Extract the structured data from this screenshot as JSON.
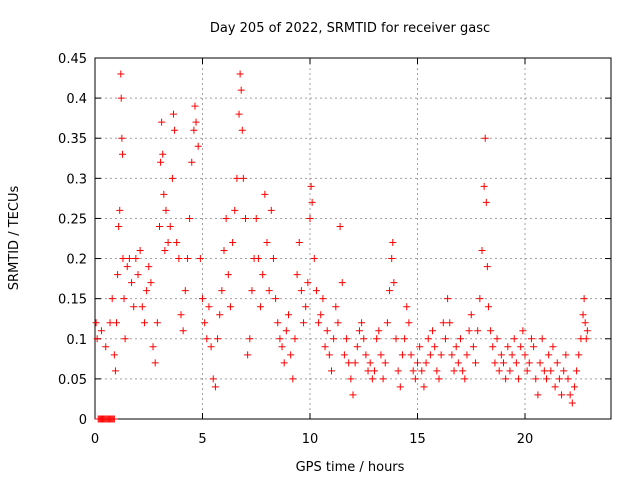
{
  "chart_data": {
    "type": "scatter",
    "title": "Day 205 of 2022, SRMTID for receiver gasc",
    "xlabel": "GPS time / hours",
    "ylabel": "SRMTID / TECUs",
    "xlim": [
      0,
      24
    ],
    "ylim": [
      0,
      0.45
    ],
    "xticks": [
      0,
      5,
      10,
      15,
      20
    ],
    "xtick_labels": [
      "0",
      "5",
      "10",
      "15",
      "20"
    ],
    "yticks": [
      0,
      0.05,
      0.1,
      0.15,
      0.2,
      0.25,
      0.3,
      0.35,
      0.4,
      0.45
    ],
    "ytick_labels": [
      "0",
      "0.05",
      "0.1",
      "0.15",
      "0.2",
      "0.25",
      "0.3",
      "0.35",
      "0.4",
      "0.45"
    ],
    "grid": true,
    "marker": "+",
    "color": "#ff0000",
    "series": [
      {
        "name": "SRMTID",
        "points": [
          [
            0.05,
            0.12
          ],
          [
            0.1,
            0.1
          ],
          [
            0.15,
            0.0
          ],
          [
            0.2,
            0.0
          ],
          [
            0.25,
            0.0
          ],
          [
            0.3,
            0.0
          ],
          [
            0.35,
            0.0
          ],
          [
            0.4,
            0.0
          ],
          [
            0.45,
            0.0
          ],
          [
            0.5,
            0.0
          ],
          [
            0.55,
            0.0
          ],
          [
            0.6,
            0.0
          ],
          [
            0.65,
            0.0
          ],
          [
            0.7,
            0.0
          ],
          [
            0.75,
            0.0
          ],
          [
            0.8,
            0.0
          ],
          [
            0.85,
            0.0
          ],
          [
            0.9,
            0.0
          ],
          [
            0.3,
            0.11
          ],
          [
            0.5,
            0.09
          ],
          [
            0.7,
            0.12
          ],
          [
            0.8,
            0.15
          ],
          [
            0.9,
            0.08
          ],
          [
            0.95,
            0.06
          ],
          [
            1.0,
            0.12
          ],
          [
            1.05,
            0.18
          ],
          [
            1.1,
            0.24
          ],
          [
            1.15,
            0.26
          ],
          [
            1.2,
            0.43
          ],
          [
            1.22,
            0.4
          ],
          [
            1.25,
            0.35
          ],
          [
            1.28,
            0.33
          ],
          [
            1.3,
            0.2
          ],
          [
            1.35,
            0.15
          ],
          [
            1.4,
            0.1
          ],
          [
            1.5,
            0.19
          ],
          [
            1.6,
            0.2
          ],
          [
            1.7,
            0.17
          ],
          [
            1.8,
            0.14
          ],
          [
            1.9,
            0.2
          ],
          [
            2.0,
            0.18
          ],
          [
            2.1,
            0.21
          ],
          [
            2.2,
            0.14
          ],
          [
            2.3,
            0.12
          ],
          [
            2.4,
            0.16
          ],
          [
            2.5,
            0.19
          ],
          [
            2.6,
            0.17
          ],
          [
            2.7,
            0.09
          ],
          [
            2.8,
            0.07
          ],
          [
            2.9,
            0.12
          ],
          [
            3.0,
            0.24
          ],
          [
            3.05,
            0.32
          ],
          [
            3.1,
            0.37
          ],
          [
            3.15,
            0.33
          ],
          [
            3.2,
            0.28
          ],
          [
            3.25,
            0.21
          ],
          [
            3.3,
            0.26
          ],
          [
            3.4,
            0.22
          ],
          [
            3.5,
            0.24
          ],
          [
            3.6,
            0.3
          ],
          [
            3.65,
            0.38
          ],
          [
            3.7,
            0.36
          ],
          [
            3.8,
            0.22
          ],
          [
            3.9,
            0.2
          ],
          [
            4.0,
            0.13
          ],
          [
            4.1,
            0.11
          ],
          [
            4.2,
            0.16
          ],
          [
            4.3,
            0.2
          ],
          [
            4.4,
            0.25
          ],
          [
            4.5,
            0.32
          ],
          [
            4.6,
            0.36
          ],
          [
            4.65,
            0.39
          ],
          [
            4.7,
            0.37
          ],
          [
            4.8,
            0.34
          ],
          [
            4.9,
            0.2
          ],
          [
            5.0,
            0.15
          ],
          [
            5.1,
            0.12
          ],
          [
            5.2,
            0.1
          ],
          [
            5.3,
            0.14
          ],
          [
            5.4,
            0.09
          ],
          [
            5.5,
            0.05
          ],
          [
            5.6,
            0.04
          ],
          [
            5.7,
            0.1
          ],
          [
            5.8,
            0.13
          ],
          [
            5.9,
            0.16
          ],
          [
            6.0,
            0.21
          ],
          [
            6.1,
            0.25
          ],
          [
            6.2,
            0.18
          ],
          [
            6.3,
            0.14
          ],
          [
            6.4,
            0.22
          ],
          [
            6.5,
            0.26
          ],
          [
            6.6,
            0.3
          ],
          [
            6.7,
            0.38
          ],
          [
            6.75,
            0.43
          ],
          [
            6.8,
            0.41
          ],
          [
            6.85,
            0.36
          ],
          [
            6.9,
            0.3
          ],
          [
            7.0,
            0.25
          ],
          [
            7.1,
            0.08
          ],
          [
            7.2,
            0.1
          ],
          [
            7.3,
            0.16
          ],
          [
            7.4,
            0.2
          ],
          [
            7.5,
            0.25
          ],
          [
            7.6,
            0.2
          ],
          [
            7.7,
            0.14
          ],
          [
            7.8,
            0.18
          ],
          [
            7.9,
            0.28
          ],
          [
            8.0,
            0.22
          ],
          [
            8.1,
            0.16
          ],
          [
            8.2,
            0.26
          ],
          [
            8.3,
            0.2
          ],
          [
            8.4,
            0.15
          ],
          [
            8.5,
            0.12
          ],
          [
            8.6,
            0.1
          ],
          [
            8.7,
            0.09
          ],
          [
            8.8,
            0.07
          ],
          [
            8.9,
            0.11
          ],
          [
            9.0,
            0.13
          ],
          [
            9.1,
            0.08
          ],
          [
            9.2,
            0.05
          ],
          [
            9.3,
            0.1
          ],
          [
            9.4,
            0.18
          ],
          [
            9.5,
            0.22
          ],
          [
            9.6,
            0.16
          ],
          [
            9.7,
            0.12
          ],
          [
            9.8,
            0.14
          ],
          [
            9.9,
            0.17
          ],
          [
            10.0,
            0.25
          ],
          [
            10.05,
            0.29
          ],
          [
            10.1,
            0.27
          ],
          [
            10.2,
            0.2
          ],
          [
            10.3,
            0.16
          ],
          [
            10.4,
            0.12
          ],
          [
            10.5,
            0.13
          ],
          [
            10.6,
            0.15
          ],
          [
            10.7,
            0.09
          ],
          [
            10.8,
            0.11
          ],
          [
            10.9,
            0.08
          ],
          [
            11.0,
            0.06
          ],
          [
            11.1,
            0.1
          ],
          [
            11.2,
            0.14
          ],
          [
            11.3,
            0.12
          ],
          [
            11.4,
            0.24
          ],
          [
            11.5,
            0.17
          ],
          [
            11.6,
            0.08
          ],
          [
            11.7,
            0.1
          ],
          [
            11.8,
            0.07
          ],
          [
            11.9,
            0.05
          ],
          [
            12.0,
            0.03
          ],
          [
            12.1,
            0.07
          ],
          [
            12.2,
            0.09
          ],
          [
            12.3,
            0.11
          ],
          [
            12.4,
            0.12
          ],
          [
            12.5,
            0.1
          ],
          [
            12.6,
            0.08
          ],
          [
            12.7,
            0.06
          ],
          [
            12.8,
            0.07
          ],
          [
            12.9,
            0.05
          ],
          [
            13.0,
            0.06
          ],
          [
            13.1,
            0.1
          ],
          [
            13.2,
            0.11
          ],
          [
            13.3,
            0.08
          ],
          [
            13.4,
            0.05
          ],
          [
            13.5,
            0.07
          ],
          [
            13.6,
            0.12
          ],
          [
            13.7,
            0.16
          ],
          [
            13.8,
            0.2
          ],
          [
            13.85,
            0.22
          ],
          [
            13.9,
            0.17
          ],
          [
            14.0,
            0.1
          ],
          [
            14.1,
            0.06
          ],
          [
            14.2,
            0.04
          ],
          [
            14.3,
            0.08
          ],
          [
            14.4,
            0.1
          ],
          [
            14.5,
            0.14
          ],
          [
            14.6,
            0.12
          ],
          [
            14.7,
            0.08
          ],
          [
            14.8,
            0.06
          ],
          [
            14.9,
            0.05
          ],
          [
            15.0,
            0.07
          ],
          [
            15.1,
            0.09
          ],
          [
            15.2,
            0.06
          ],
          [
            15.3,
            0.04
          ],
          [
            15.4,
            0.07
          ],
          [
            15.5,
            0.1
          ],
          [
            15.6,
            0.08
          ],
          [
            15.7,
            0.11
          ],
          [
            15.8,
            0.09
          ],
          [
            15.9,
            0.06
          ],
          [
            16.0,
            0.05
          ],
          [
            16.1,
            0.08
          ],
          [
            16.2,
            0.12
          ],
          [
            16.3,
            0.1
          ],
          [
            16.4,
            0.15
          ],
          [
            16.5,
            0.12
          ],
          [
            16.6,
            0.08
          ],
          [
            16.7,
            0.06
          ],
          [
            16.8,
            0.09
          ],
          [
            16.9,
            0.07
          ],
          [
            17.0,
            0.1
          ],
          [
            17.1,
            0.06
          ],
          [
            17.2,
            0.05
          ],
          [
            17.3,
            0.08
          ],
          [
            17.4,
            0.11
          ],
          [
            17.5,
            0.13
          ],
          [
            17.6,
            0.09
          ],
          [
            17.7,
            0.07
          ],
          [
            17.8,
            0.11
          ],
          [
            17.9,
            0.15
          ],
          [
            18.0,
            0.21
          ],
          [
            18.1,
            0.29
          ],
          [
            18.15,
            0.35
          ],
          [
            18.2,
            0.27
          ],
          [
            18.25,
            0.19
          ],
          [
            18.3,
            0.14
          ],
          [
            18.4,
            0.11
          ],
          [
            18.5,
            0.09
          ],
          [
            18.6,
            0.07
          ],
          [
            18.7,
            0.1
          ],
          [
            18.8,
            0.06
          ],
          [
            18.9,
            0.08
          ],
          [
            19.0,
            0.07
          ],
          [
            19.1,
            0.05
          ],
          [
            19.2,
            0.09
          ],
          [
            19.3,
            0.06
          ],
          [
            19.4,
            0.08
          ],
          [
            19.5,
            0.1
          ],
          [
            19.6,
            0.07
          ],
          [
            19.7,
            0.05
          ],
          [
            19.8,
            0.09
          ],
          [
            19.9,
            0.11
          ],
          [
            20.0,
            0.08
          ],
          [
            20.1,
            0.06
          ],
          [
            20.2,
            0.07
          ],
          [
            20.3,
            0.1
          ],
          [
            20.4,
            0.09
          ],
          [
            20.5,
            0.05
          ],
          [
            20.6,
            0.03
          ],
          [
            20.7,
            0.07
          ],
          [
            20.8,
            0.1
          ],
          [
            20.9,
            0.06
          ],
          [
            21.0,
            0.05
          ],
          [
            21.1,
            0.08
          ],
          [
            21.2,
            0.06
          ],
          [
            21.3,
            0.09
          ],
          [
            21.4,
            0.04
          ],
          [
            21.5,
            0.07
          ],
          [
            21.6,
            0.05
          ],
          [
            21.7,
            0.03
          ],
          [
            21.8,
            0.06
          ],
          [
            21.9,
            0.08
          ],
          [
            22.0,
            0.05
          ],
          [
            22.1,
            0.03
          ],
          [
            22.2,
            0.02
          ],
          [
            22.3,
            0.04
          ],
          [
            22.4,
            0.06
          ],
          [
            22.5,
            0.08
          ],
          [
            22.6,
            0.1
          ],
          [
            22.7,
            0.13
          ],
          [
            22.75,
            0.15
          ],
          [
            22.8,
            0.12
          ],
          [
            22.85,
            0.1
          ],
          [
            22.9,
            0.11
          ]
        ]
      }
    ]
  }
}
